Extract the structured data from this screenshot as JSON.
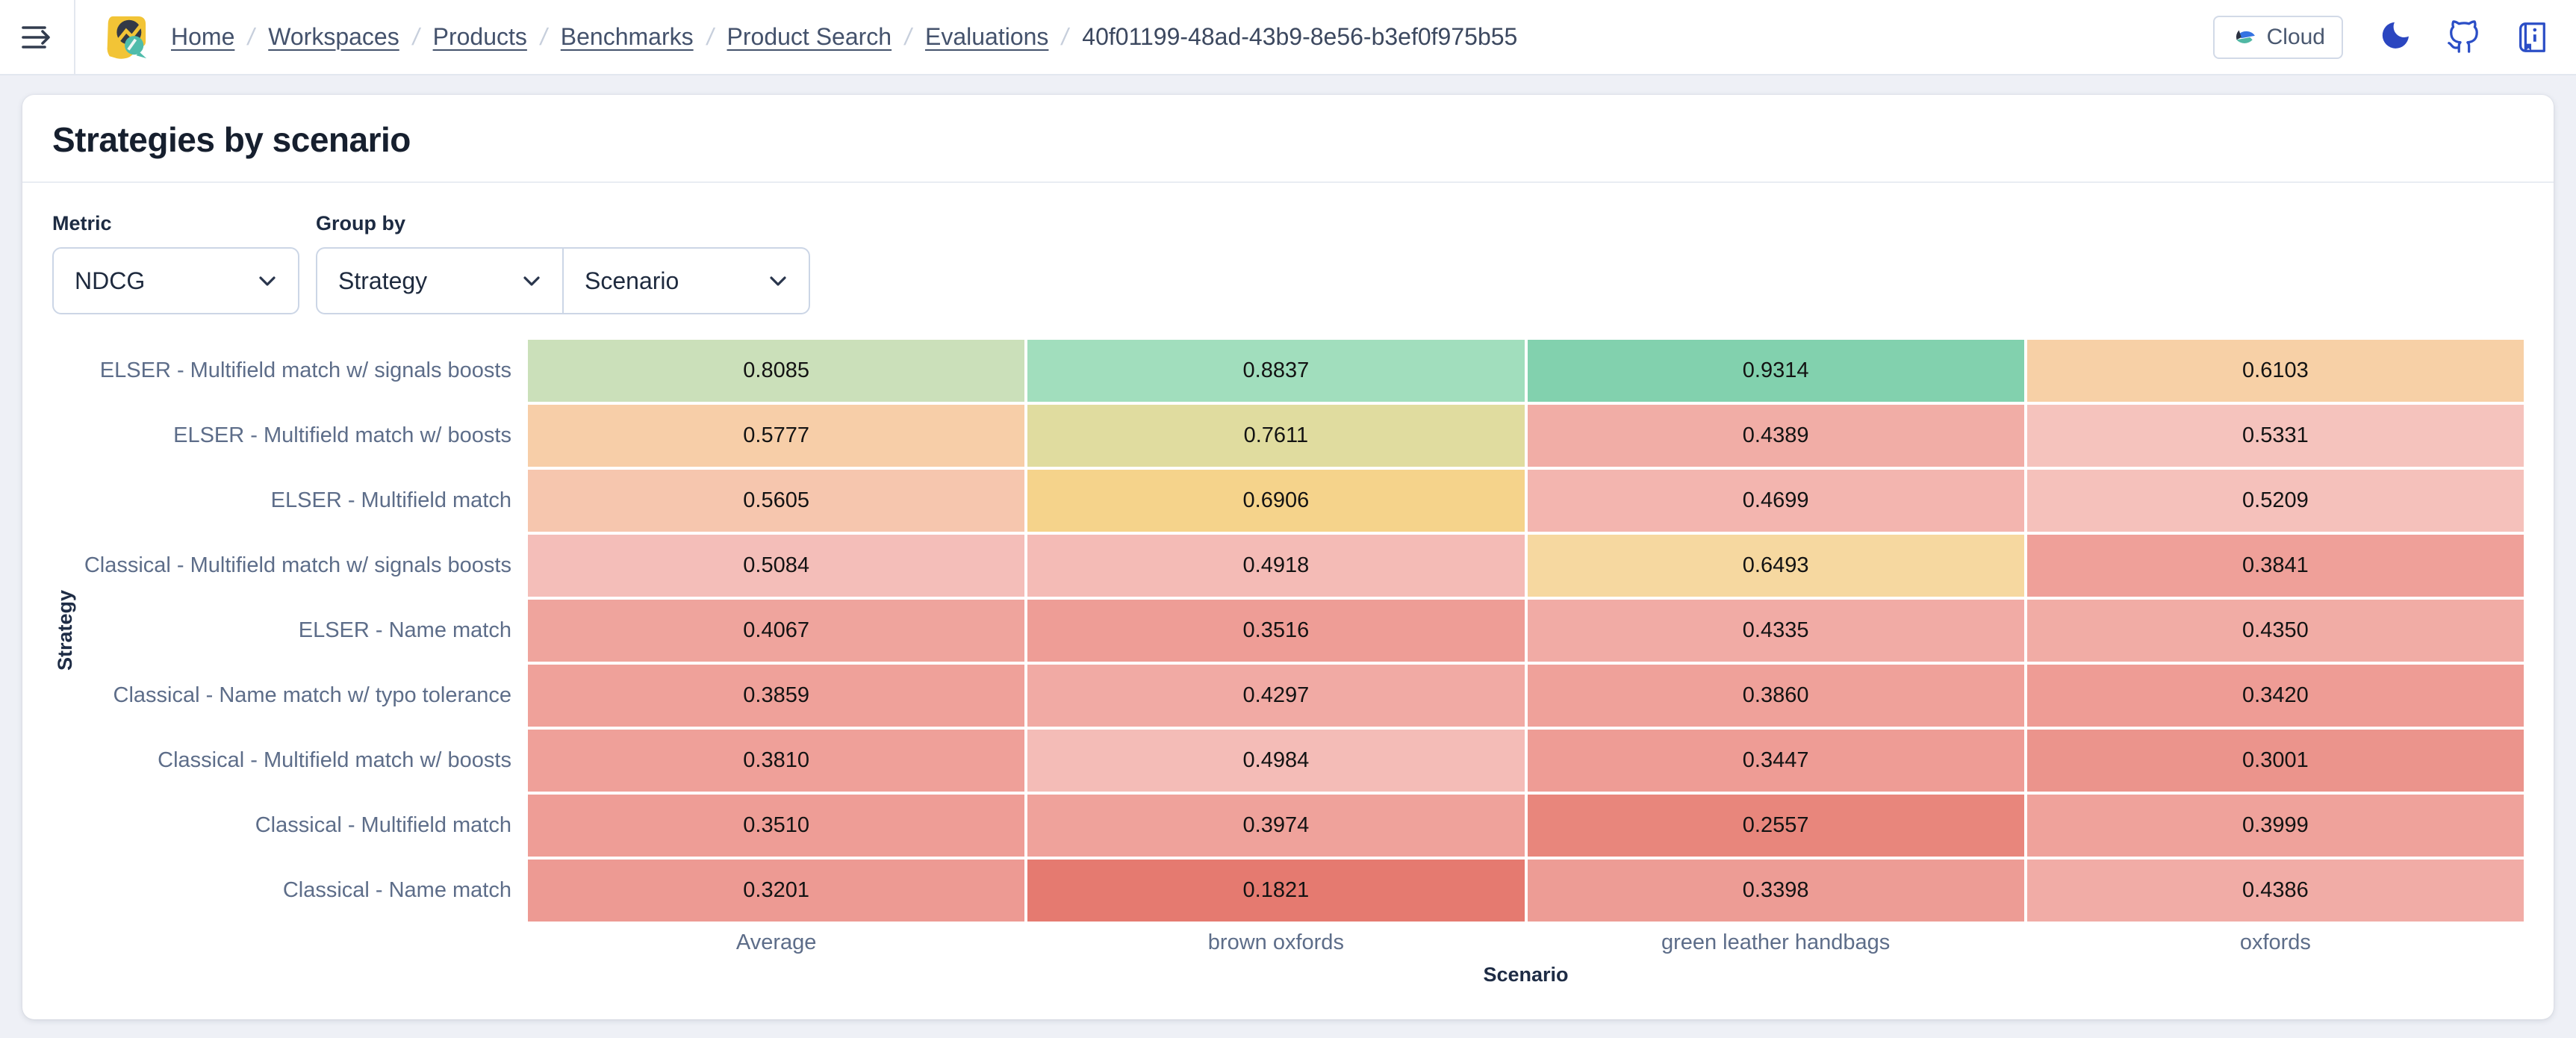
{
  "nav": {
    "breadcrumbs": [
      {
        "label": "Home",
        "current": false
      },
      {
        "label": "Workspaces",
        "current": false
      },
      {
        "label": "Products",
        "current": false
      },
      {
        "label": "Benchmarks",
        "current": false
      },
      {
        "label": "Product Search",
        "current": false
      },
      {
        "label": "Evaluations",
        "current": false
      },
      {
        "label": "40f01199-48ad-43b9-8e56-b3ef0f975b55",
        "current": true
      }
    ],
    "cloud_button": {
      "label": "Cloud"
    },
    "action_icons": [
      "dark-mode-moon",
      "github",
      "docs-book"
    ]
  },
  "panel": {
    "title": "Strategies by scenario",
    "controls": {
      "metric": {
        "label": "Metric",
        "value": "NDCG"
      },
      "group_by": {
        "label": "Group by",
        "values": [
          "Strategy",
          "Scenario"
        ]
      }
    }
  },
  "chart_data": {
    "type": "heatmap",
    "title": "Strategies by scenario",
    "metric": "NDCG",
    "xlabel": "Scenario",
    "ylabel": "Strategy",
    "columns": [
      "Average",
      "brown oxfords",
      "green leather handbags",
      "oxfords"
    ],
    "rows": [
      "ELSER - Multifield match w/ signals boosts",
      "ELSER - Multifield match w/ boosts",
      "ELSER - Multifield match",
      "Classical - Multifield match w/ signals boosts",
      "ELSER - Name match",
      "Classical - Name match w/ typo tolerance",
      "Classical - Multifield match w/ boosts",
      "Classical - Multifield match",
      "Classical - Name match"
    ],
    "values": [
      [
        0.8085,
        0.8837,
        0.9314,
        0.6103
      ],
      [
        0.5777,
        0.7611,
        0.4389,
        0.5331
      ],
      [
        0.5605,
        0.6906,
        0.4699,
        0.5209
      ],
      [
        0.5084,
        0.4918,
        0.6493,
        0.3841
      ],
      [
        0.4067,
        0.3516,
        0.4335,
        0.435
      ],
      [
        0.3859,
        0.4297,
        0.386,
        0.342
      ],
      [
        0.381,
        0.4984,
        0.3447,
        0.3001
      ],
      [
        0.351,
        0.3974,
        0.2557,
        0.3999
      ],
      [
        0.3201,
        0.1821,
        0.3398,
        0.4386
      ]
    ],
    "value_labels": [
      [
        "0.8085",
        "0.8837",
        "0.9314",
        "0.6103"
      ],
      [
        "0.5777",
        "0.7611",
        "0.4389",
        "0.5331"
      ],
      [
        "0.5605",
        "0.6906",
        "0.4699",
        "0.5209"
      ],
      [
        "0.5084",
        "0.4918",
        "0.6493",
        "0.3841"
      ],
      [
        "0.4067",
        "0.3516",
        "0.4335",
        "0.4350"
      ],
      [
        "0.3859",
        "0.4297",
        "0.3860",
        "0.3420"
      ],
      [
        "0.3810",
        "0.4984",
        "0.3447",
        "0.3001"
      ],
      [
        "0.3510",
        "0.3974",
        "0.2557",
        "0.3999"
      ],
      [
        "0.3201",
        "0.1821",
        "0.3398",
        "0.4386"
      ]
    ],
    "value_domain": [
      0.1821,
      0.9314
    ],
    "legend": "none",
    "grid": "off",
    "color_scale": [
      {
        "t": 0.0,
        "color": "#e57a70"
      },
      {
        "t": 0.1,
        "color": "#e8867c"
      },
      {
        "t": 0.185,
        "color": "#ed9a93"
      },
      {
        "t": 0.29,
        "color": "#efa29b"
      },
      {
        "t": 0.42,
        "color": "#f4bcb7"
      },
      {
        "t": 0.47,
        "color": "#f5c3bd"
      },
      {
        "t": 0.505,
        "color": "#f6c6ae"
      },
      {
        "t": 0.53,
        "color": "#f7cfa8"
      },
      {
        "t": 0.575,
        "color": "#f7d0a6"
      },
      {
        "t": 0.625,
        "color": "#f6d8a0"
      },
      {
        "t": 0.68,
        "color": "#f5d38a"
      },
      {
        "t": 0.775,
        "color": "#dfdca0"
      },
      {
        "t": 0.835,
        "color": "#cbe0ba"
      },
      {
        "t": 0.935,
        "color": "#a2debd"
      },
      {
        "t": 1.0,
        "color": "#82d1ae"
      }
    ]
  },
  "colors": {
    "page_bg": "#eef0f6",
    "panel_bg": "#ffffff",
    "accent_icon_blue": "#2b4ec6",
    "breadcrumb_text": "#44526c",
    "title_text": "#161f2e",
    "muted_text": "#5d6d89",
    "control_border": "#ccd6e6",
    "logo_yellow": "#f2c436",
    "logo_dark": "#333947",
    "logo_teal": "#4fbcab",
    "elastic_blue": "#3573e2",
    "elastic_teal": "#50b8a4",
    "elastic_dark": "#2a3040"
  }
}
